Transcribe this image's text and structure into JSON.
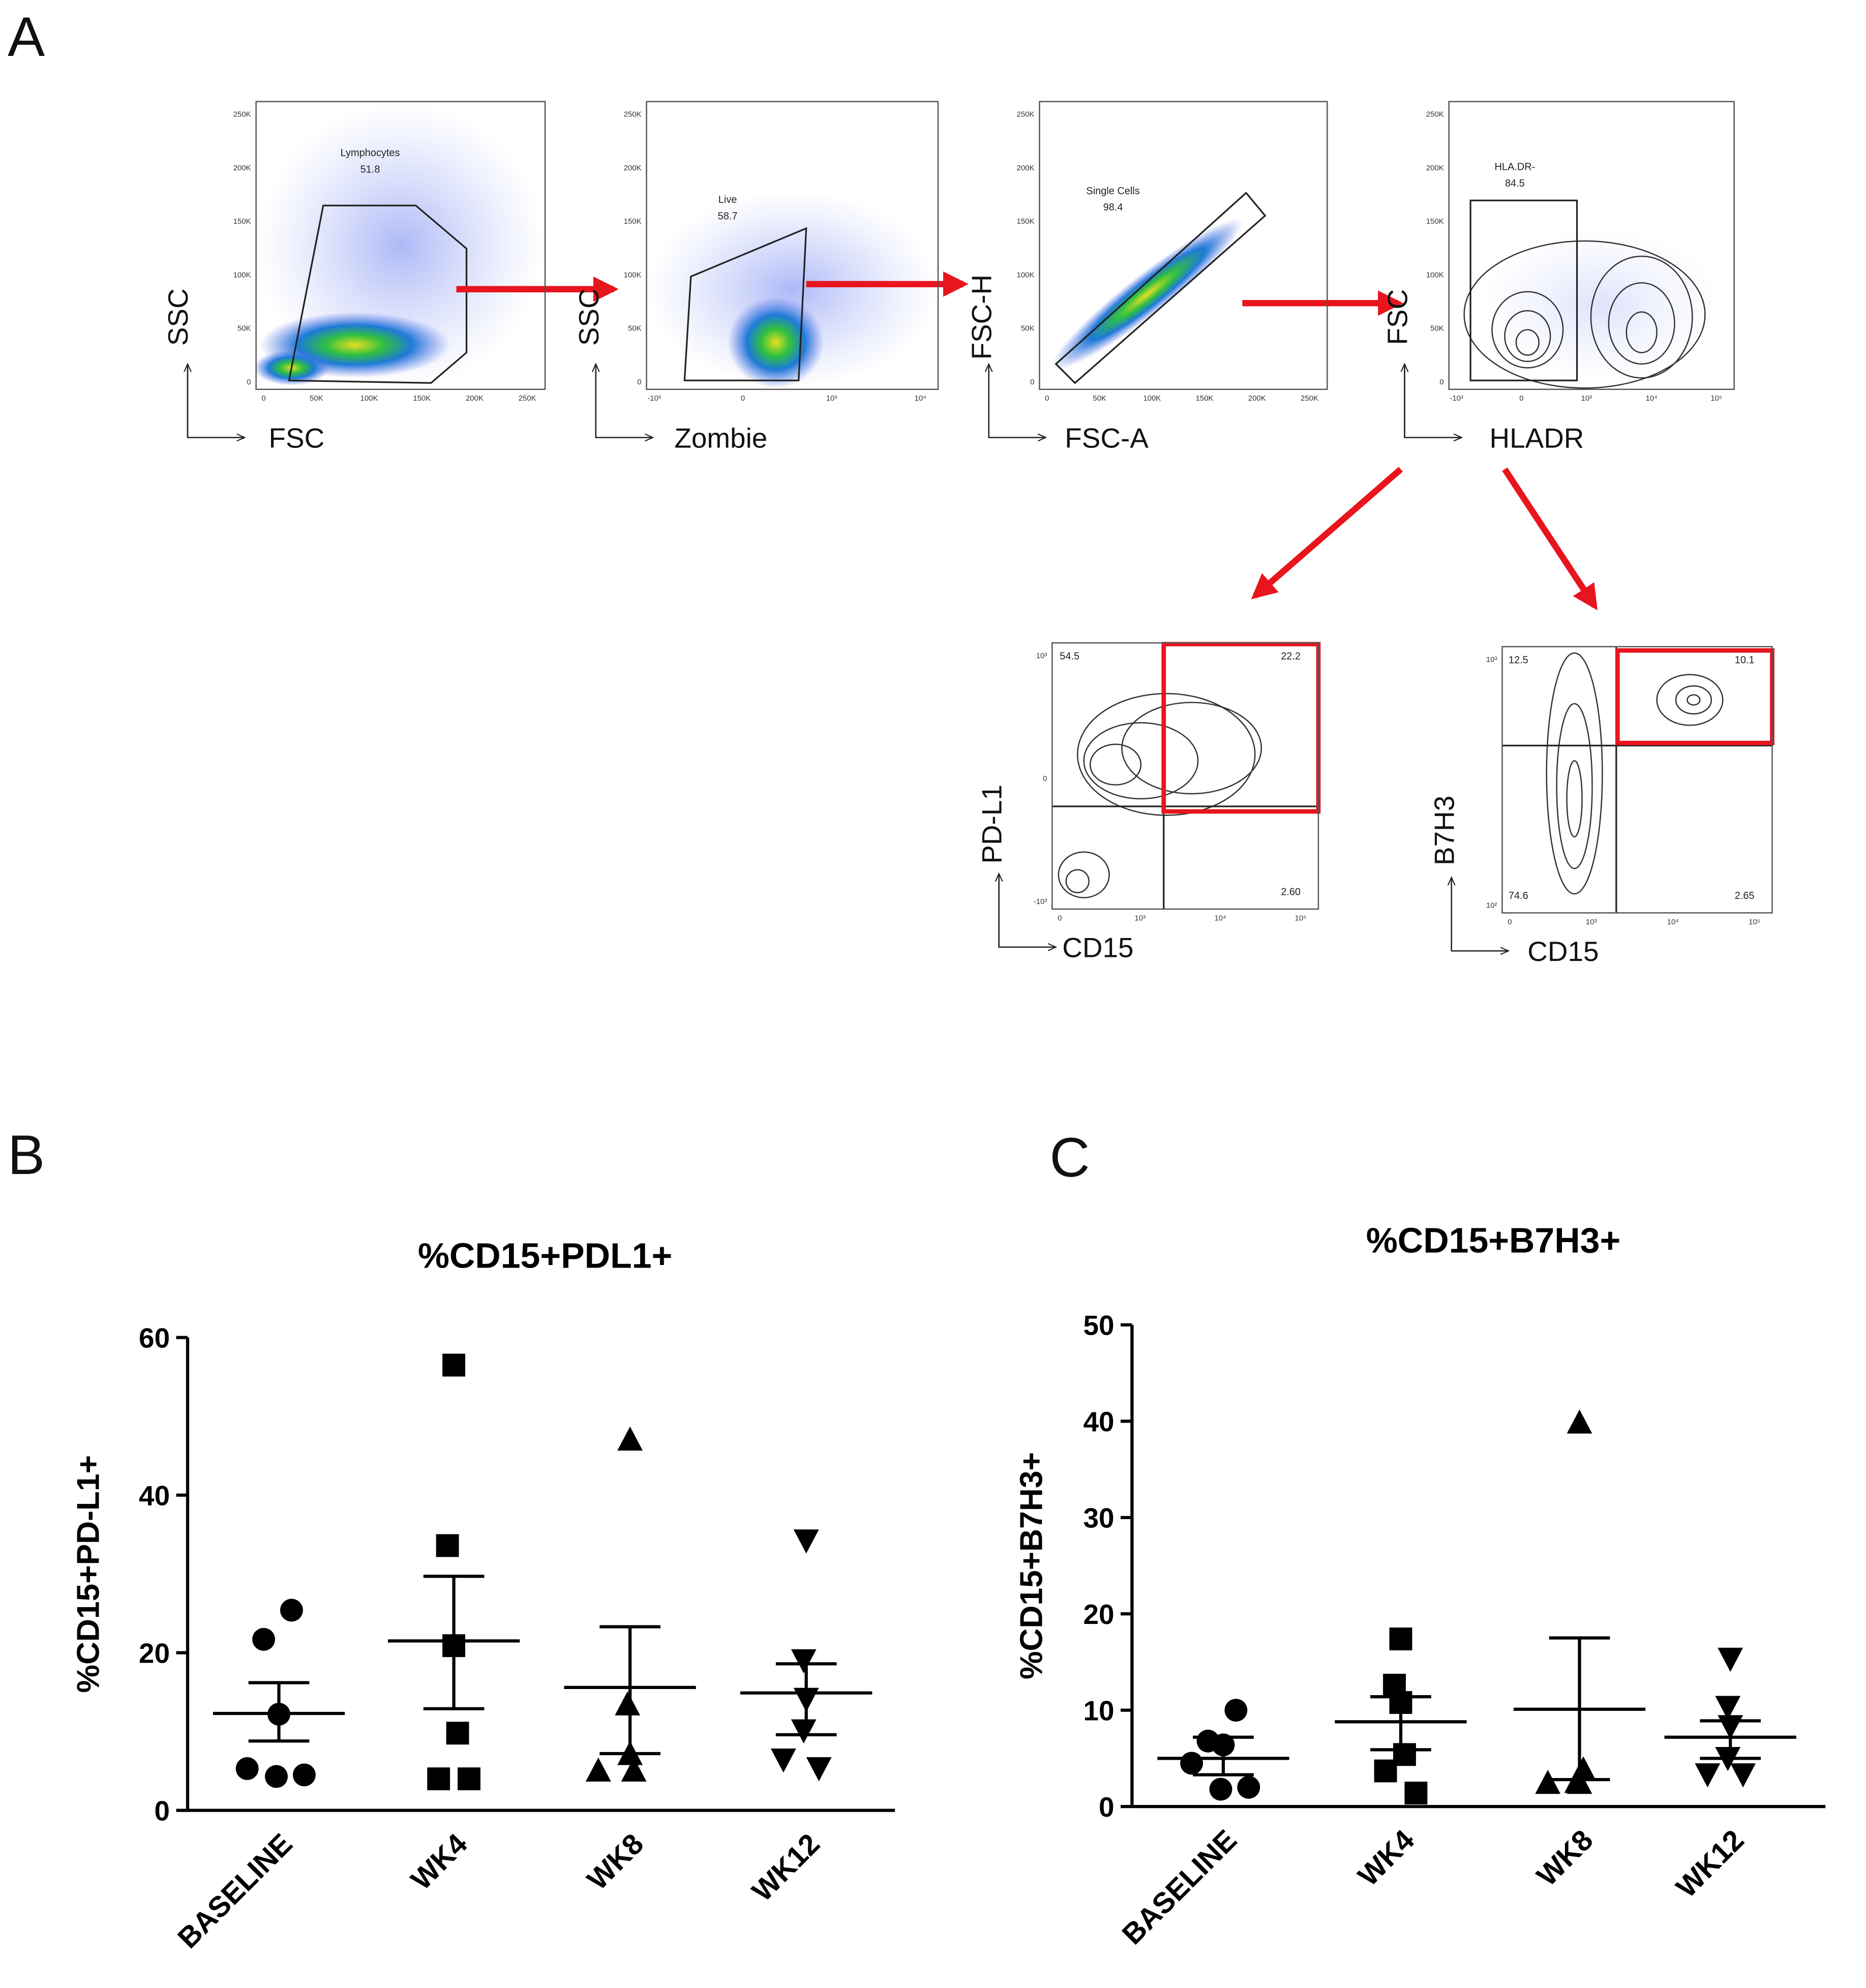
{
  "panel_labels": [
    "A",
    "B",
    "C"
  ],
  "panel_a": {
    "plots": [
      {
        "x_label": "FSC",
        "y_label": "SSC",
        "gate_label": "Lymphocytes",
        "gate_value": "51.8",
        "y_ticks": [
          "250K",
          "200K",
          "150K",
          "100K",
          "50K",
          "0"
        ],
        "x_ticks": [
          "0",
          "50K",
          "100K",
          "150K",
          "200K",
          "250K"
        ]
      },
      {
        "x_label": "Zombie",
        "y_label": "SSC",
        "gate_label": "Live",
        "gate_value": "58.7",
        "y_ticks": [
          "250K",
          "200K",
          "150K",
          "100K",
          "50K",
          "0"
        ],
        "x_ticks": [
          "-10³",
          "0",
          "10³",
          "10⁴"
        ]
      },
      {
        "x_label": "FSC-A",
        "y_label": "FSC-H",
        "gate_label": "Single Cells",
        "gate_value": "98.4",
        "y_ticks": [
          "250K",
          "200K",
          "150K",
          "100K",
          "50K",
          "0"
        ],
        "x_ticks": [
          "0",
          "50K",
          "100K",
          "150K",
          "200K",
          "250K"
        ]
      },
      {
        "x_label": "HLADR",
        "y_label": "FSC",
        "gate_label": "HLA.DR-",
        "gate_value": "84.5",
        "y_ticks": [
          "250K",
          "200K",
          "150K",
          "100K",
          "50K",
          "0"
        ],
        "x_ticks": [
          "-10³",
          "0",
          "10³",
          "10⁴",
          "10⁵"
        ]
      },
      {
        "x_label": "CD15",
        "y_label": "PD-L1",
        "quadrants": [
          "54.5",
          "22.2",
          "2.60"
        ],
        "y_ticks": [
          "10³",
          "0",
          "-10³"
        ],
        "x_ticks": [
          "0",
          "10³",
          "10⁴",
          "10⁵"
        ]
      },
      {
        "x_label": "CD15",
        "y_label": "B7H3",
        "quadrants": [
          "12.5",
          "10.1",
          "74.6",
          "2.65"
        ],
        "y_ticks": [
          "10³",
          "10²"
        ],
        "x_ticks": [
          "0",
          "10³",
          "10⁴",
          "10⁵"
        ]
      }
    ]
  },
  "chart_data": [
    {
      "type": "scatter",
      "title": "%CD15+PDL1+",
      "y_label": "%CD15+PD-L1+",
      "categories": [
        "BASELINE",
        "WK4",
        "WK8",
        "WK12"
      ],
      "markers": [
        "circle",
        "square",
        "triangle-up",
        "triangle-down"
      ],
      "color": "#000000",
      "values": [
        [
          25.4,
          21.7,
          12.2,
          5.3,
          4.3,
          4.5
        ],
        [
          56.5,
          33.6,
          20.9,
          9.8,
          4.0,
          4.0
        ],
        [
          47.1,
          13.5,
          7.2,
          5.1,
          5.1
        ],
        [
          34.2,
          19.0,
          14.1,
          10.1,
          6.4,
          5.3
        ]
      ],
      "mean": [
        12.3,
        21.5,
        15.6,
        14.9
      ],
      "sem_upper": [
        16.2,
        29.7,
        23.3,
        18.6
      ],
      "sem_lower": [
        8.8,
        12.9,
        7.2,
        9.6
      ],
      "ylim": [
        0,
        60
      ],
      "yticks": [
        0,
        20,
        40,
        60
      ]
    },
    {
      "type": "scatter",
      "title": "%CD15+B7H3+",
      "y_label": "%CD15+B7H3+",
      "categories": [
        "BASELINE",
        "WK4",
        "WK8",
        "WK12"
      ],
      "markers": [
        "circle",
        "square",
        "triangle-up",
        "triangle-down"
      ],
      "color": "#000000",
      "values": [
        [
          10.0,
          6.8,
          6.4,
          4.5,
          1.8,
          2.0
        ],
        [
          17.4,
          12.6,
          10.8,
          5.4,
          3.7,
          1.4
        ],
        [
          39.9,
          2.6,
          2.5,
          2.5,
          3.9
        ],
        [
          15.3,
          10.3,
          8.3,
          5.0,
          3.3,
          3.3
        ]
      ],
      "mean": [
        5.0,
        8.8,
        10.1,
        7.2
      ],
      "sem_upper": [
        7.2,
        11.4,
        17.5,
        8.9
      ],
      "sem_lower": [
        3.3,
        5.9,
        2.8,
        5.0
      ],
      "ylim": [
        0,
        50
      ],
      "yticks": [
        0,
        10,
        20,
        30,
        40,
        50
      ]
    }
  ]
}
